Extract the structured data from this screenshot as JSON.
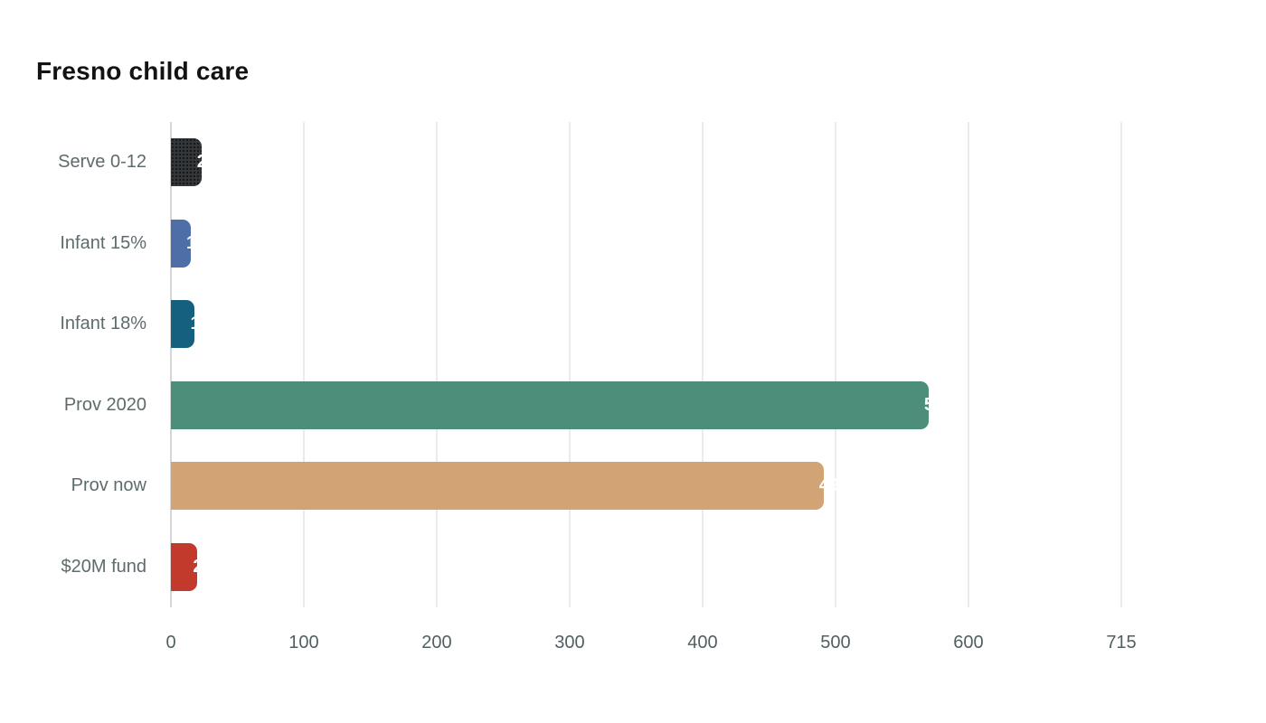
{
  "chart_data": {
    "type": "bar",
    "orientation": "horizontal",
    "title": "Fresno child care",
    "categories": [
      "Serve 0-12",
      "Infant 15%",
      "Infant 18%",
      "Prov 2020",
      "Prov now",
      "$20M fund"
    ],
    "values": [
      23,
      15,
      18,
      570,
      491,
      20
    ],
    "bar_colors": [
      "#35383b",
      "#4d6ea7",
      "#16607f",
      "#4d8e7b",
      "#d2a475",
      "#c23a2c"
    ],
    "bar_patterns": [
      "dots",
      "",
      "",
      "",
      "",
      ""
    ],
    "x_ticks": [
      0,
      100,
      200,
      300,
      400,
      500,
      600,
      715
    ],
    "xlim": [
      0,
      715
    ],
    "xlabel": "",
    "ylabel": "",
    "grid": true,
    "legend": false,
    "value_labels": {
      "color": "#ffffff",
      "position": "end-of-bar-clipped"
    }
  },
  "colors": {
    "background": "#ffffff",
    "gridline": "#ebebeb",
    "zero_line": "#d6d6d6",
    "title": "#111315",
    "tick_label": "#515f60",
    "category_label": "#5d6b6c"
  }
}
